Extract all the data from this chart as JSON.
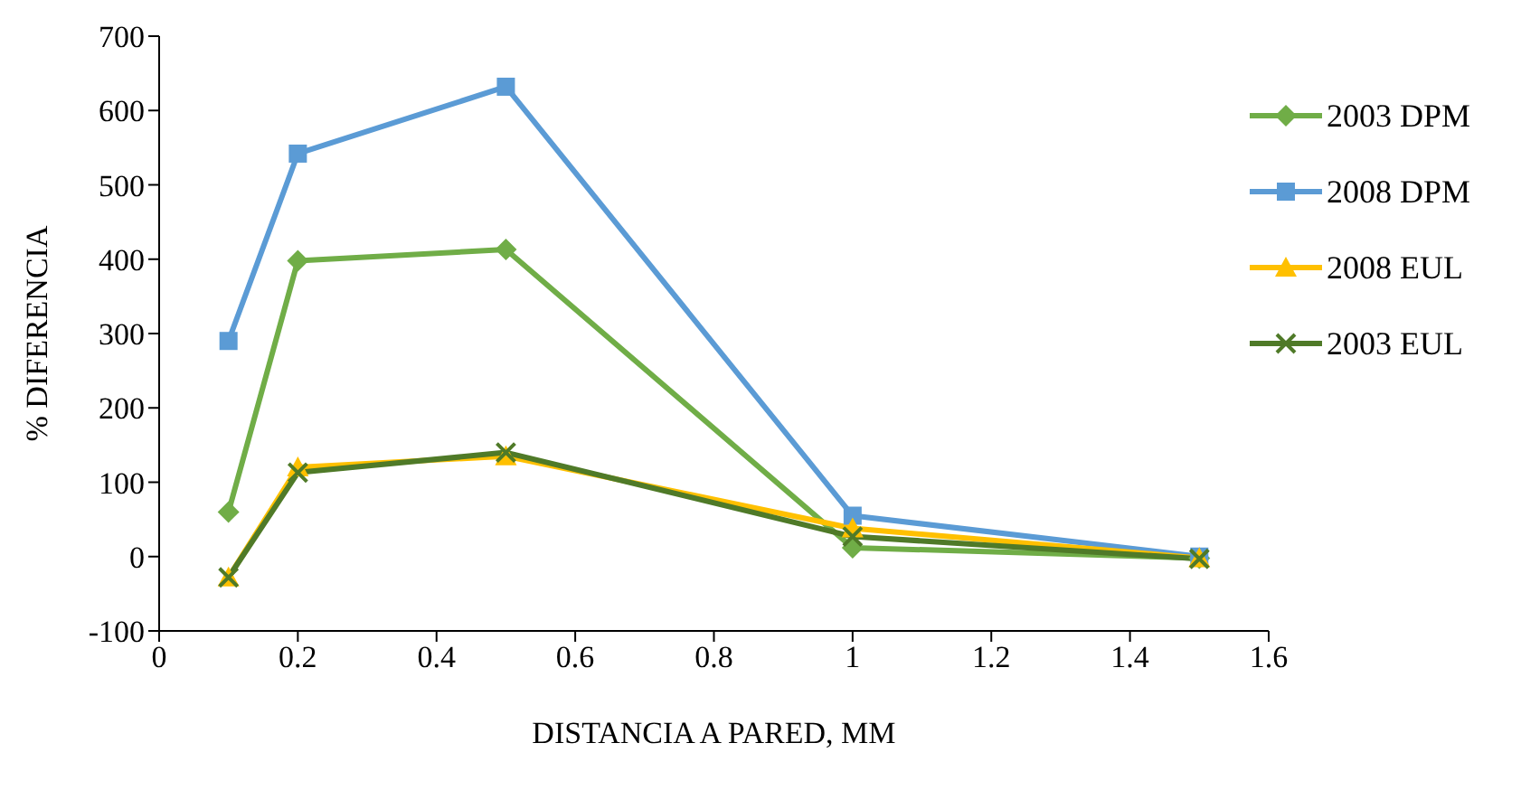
{
  "chart_data": {
    "type": "line",
    "xlabel": "DISTANCIA A PARED, MM",
    "ylabel": "% DIFERENCIA",
    "x": [
      0.1,
      0.2,
      0.5,
      1,
      1.5
    ],
    "series": [
      {
        "name": "2003 DPM",
        "color": "#70ad47",
        "marker": "diamond",
        "values": [
          60,
          398,
          413,
          12,
          -2
        ]
      },
      {
        "name": "2008 DPM",
        "color": "#5b9bd5",
        "marker": "square",
        "values": [
          290,
          542,
          632,
          55,
          0
        ]
      },
      {
        "name": "2008 EUL",
        "color": "#ffc000",
        "marker": "triangle",
        "values": [
          -28,
          120,
          135,
          38,
          -2
        ]
      },
      {
        "name": "2003 EUL",
        "color": "#4f7a28",
        "marker": "cross",
        "values": [
          -28,
          113,
          140,
          27,
          -3
        ]
      }
    ],
    "xlim": [
      0,
      1.6
    ],
    "xticks": [
      0,
      0.2,
      0.4,
      0.6,
      0.8,
      1,
      1.2,
      1.4,
      1.6
    ],
    "ylim": [
      -100,
      700
    ],
    "yticks": [
      -100,
      0,
      100,
      200,
      300,
      400,
      500,
      600,
      700
    ],
    "grid": false,
    "legend": "top right",
    "line_style": "solid"
  }
}
